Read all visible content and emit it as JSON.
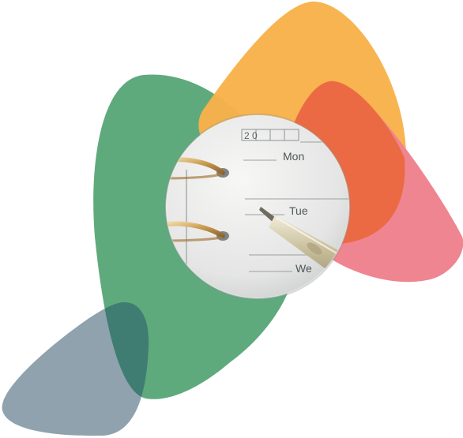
{
  "illustration": {
    "shape_colors": {
      "green": "#5faa7c",
      "orange": "#f7b24a",
      "red_overlap": "#ec6a43",
      "pink": "#ef8590",
      "slate": "#8fa2ae",
      "teal_overlap": "#3f7d73"
    },
    "planner": {
      "year_prefix": "2 0",
      "days": [
        "Mon",
        "Tue",
        "We"
      ]
    }
  }
}
